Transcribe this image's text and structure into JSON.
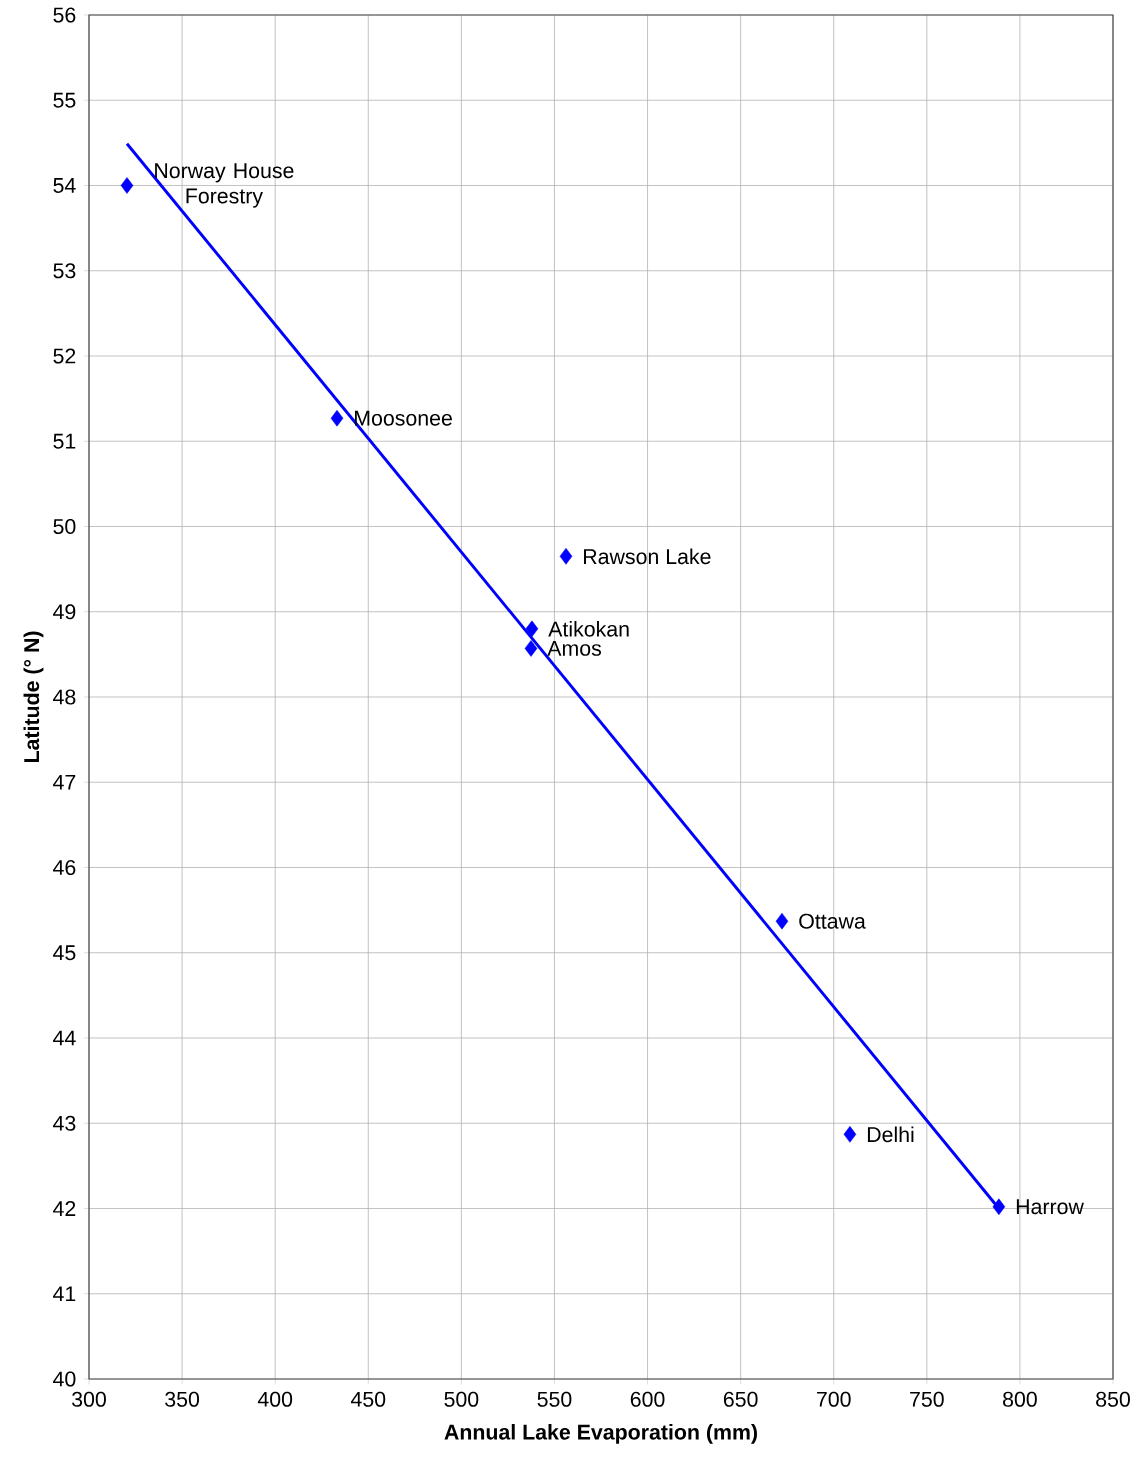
{
  "chart_data": {
    "type": "scatter",
    "xlabel": "Annual Lake Evaporation (mm)",
    "ylabel": "Latitude (° N)",
    "xlim": [
      300,
      850
    ],
    "xticks": [
      300,
      350,
      400,
      450,
      500,
      550,
      600,
      650,
      700,
      750,
      800,
      850
    ],
    "ylim": [
      40,
      56
    ],
    "yticks": [
      40,
      41,
      42,
      43,
      44,
      45,
      46,
      47,
      48,
      49,
      50,
      51,
      52,
      53,
      54,
      55,
      56
    ],
    "grid": true,
    "marker": "diamond",
    "series": [
      {
        "color": "#0000ff",
        "x": [
          320.4,
          433.2,
          556.2,
          537.9,
          537.4,
          672.2,
          708.7,
          788.7
        ],
        "values": [
          54.0,
          51.27,
          49.65,
          48.8,
          48.57,
          45.37,
          42.87,
          42.02
        ]
      },
      {
        "type": "line",
        "color": "#0000ff",
        "marker": "none",
        "x": [
          320.4,
          788.7
        ],
        "values": [
          54.49,
          42.0
        ]
      }
    ],
    "annotations": [
      {
        "text": "Norway House Forestry",
        "x": 320.4,
        "y": 54.0
      },
      {
        "text": "Moosonee",
        "x": 433.2,
        "y": 51.27
      },
      {
        "text": "Rawson Lake",
        "x": 556.2,
        "y": 49.65
      },
      {
        "text": "Atikokan",
        "x": 537.9,
        "y": 48.8
      },
      {
        "text": "Amos",
        "x": 537.4,
        "y": 48.57
      },
      {
        "text": "Ottawa",
        "x": 672.2,
        "y": 45.37
      },
      {
        "text": "Delhi",
        "x": 708.7,
        "y": 42.87
      },
      {
        "text": "Harrow",
        "x": 788.7,
        "y": 42.02
      }
    ]
  }
}
